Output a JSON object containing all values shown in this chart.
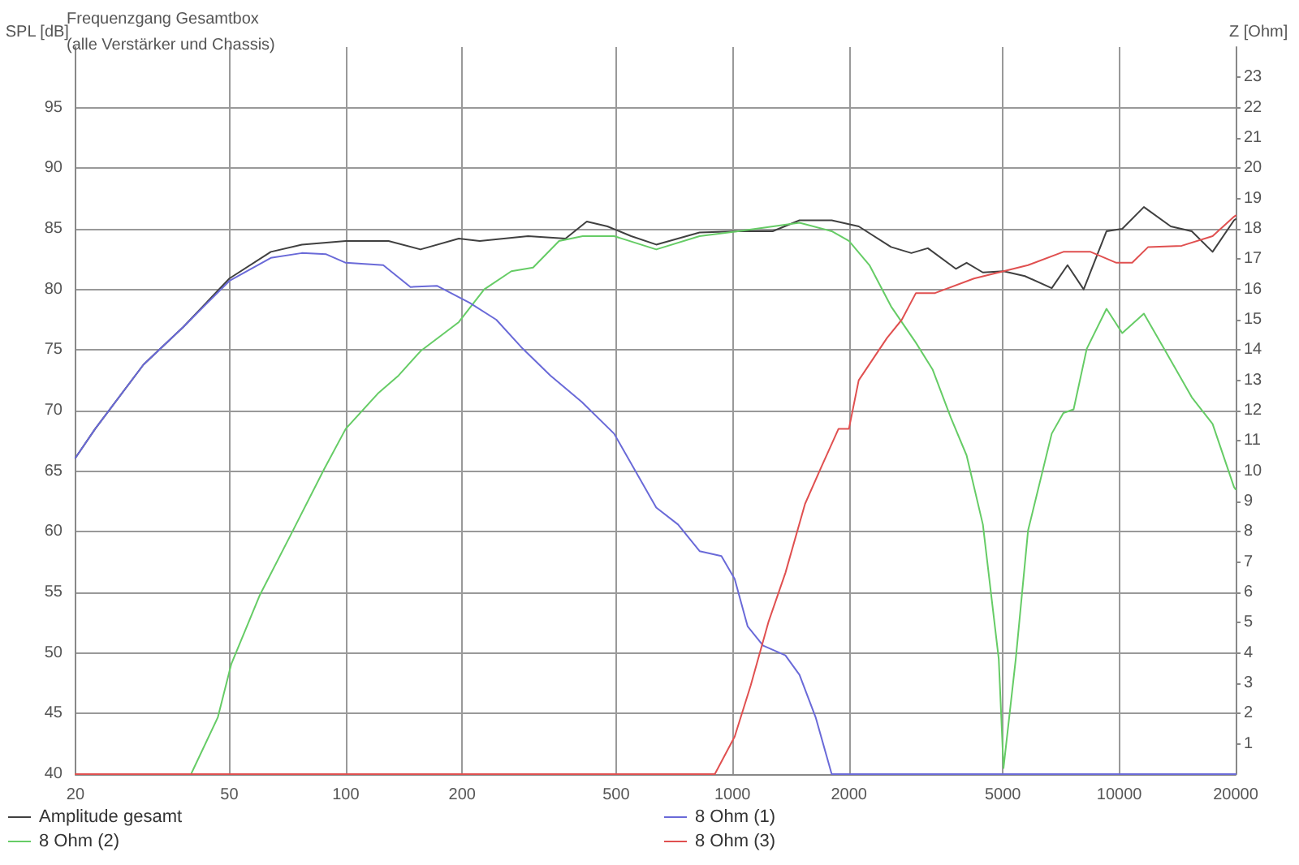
{
  "chart_data": {
    "type": "line",
    "title": "Frequenzgang Gesamtbox",
    "subtitle": "(alle Verstärker und Chassis)",
    "ylabel": "SPL [dB]",
    "y2label": "Z [Ohm]",
    "log": "x",
    "xlim": [
      20,
      20000
    ],
    "xticks": [
      20,
      50,
      100,
      200,
      500,
      1000,
      2000,
      5000,
      10000,
      20000
    ],
    "ylim": [
      40,
      100
    ],
    "yticks": [
      40,
      45,
      50,
      55,
      60,
      65,
      70,
      75,
      80,
      85,
      90,
      95
    ],
    "y2lim": [
      0,
      24
    ],
    "y2ticks": [
      1,
      2,
      3,
      4,
      5,
      6,
      7,
      8,
      9,
      10,
      11,
      12,
      13,
      14,
      15,
      16,
      17,
      18,
      19,
      20,
      21,
      22,
      23
    ],
    "grid": true,
    "legend": "bottom",
    "marker": "none",
    "line_style": "solid",
    "series": [
      {
        "name": "Amplitude gesamt",
        "color": "#404040",
        "x": [
          20,
          22.5,
          30,
          38,
          50,
          64,
          77,
          100,
          129,
          156,
          196,
          222,
          296,
          370,
          420,
          475,
          547,
          635,
          822,
          1033,
          1270,
          1490,
          1805,
          2120,
          2570,
          2900,
          3200,
          3780,
          4030,
          4440,
          5020,
          5700,
          6690,
          7350,
          8090,
          9270,
          10180,
          11580,
          13590,
          15400,
          17430,
          19800,
          20000
        ],
        "values": [
          66.1,
          68.5,
          73.8,
          76.9,
          80.9,
          83.1,
          83.7,
          84,
          84,
          83.3,
          84.2,
          84,
          84.4,
          84.2,
          85.6,
          85.2,
          84.4,
          83.7,
          84.7,
          84.8,
          84.8,
          85.7,
          85.7,
          85.2,
          83.5,
          83,
          83.4,
          81.7,
          82.2,
          81.4,
          81.5,
          81.1,
          80.1,
          82,
          80,
          84.8,
          85,
          86.8,
          85.2,
          84.8,
          83.1,
          85.7,
          85.8
        ]
      },
      {
        "name": "8 Ohm (2)",
        "color": "#66cc66",
        "x": [
          20,
          39.8,
          46.7,
          50.6,
          60,
          73,
          88,
          100,
          121,
          137,
          156,
          196,
          228,
          268,
          305,
          356,
          410,
          494,
          635,
          822,
          1033,
          1490,
          1805,
          2000,
          2260,
          2570,
          2980,
          3290,
          3670,
          4030,
          4440,
          4880,
          5020,
          5400,
          5810,
          6690,
          7170,
          7620,
          8240,
          9270,
          10180,
          11580,
          13060,
          15400,
          17430,
          19800,
          20000
        ],
        "values": [
          40,
          40,
          44.7,
          49.1,
          54.8,
          60.1,
          65.2,
          68.5,
          71.4,
          72.9,
          74.9,
          77.3,
          80,
          81.5,
          81.8,
          84,
          84.4,
          84.4,
          83.3,
          84.4,
          84.8,
          85.5,
          84.8,
          84,
          82,
          78.6,
          75.6,
          73.4,
          69.4,
          66.3,
          60.6,
          49.5,
          40.5,
          49.5,
          60.1,
          68.1,
          69.8,
          70.1,
          75.1,
          78.4,
          76.4,
          78,
          75.1,
          71.1,
          68.9,
          63.7,
          63.5
        ]
      },
      {
        "name": "8 Ohm (1)",
        "color": "#6a6ad8",
        "x": [
          20,
          22.5,
          30,
          38,
          50,
          64,
          77,
          89,
          100,
          125,
          147,
          172,
          209,
          245,
          287,
          338,
          408,
          494,
          635,
          723,
          822,
          936,
          1013,
          1094,
          1200,
          1370,
          1490,
          1640,
          1805,
          20000
        ],
        "values": [
          66.1,
          68.5,
          73.8,
          76.9,
          80.7,
          82.6,
          83,
          82.9,
          82.2,
          82,
          80.2,
          80.3,
          78.9,
          77.5,
          75.1,
          72.9,
          70.7,
          68.1,
          62,
          60.6,
          58.4,
          58,
          56.1,
          52.2,
          50.6,
          49.8,
          48.2,
          44.7,
          40,
          40
        ]
      },
      {
        "name": "8 Ohm (3)",
        "color": "#e05050",
        "x": [
          20,
          900,
          1013,
          1114,
          1240,
          1370,
          1540,
          1700,
          1880,
          2000,
          2120,
          2510,
          2740,
          2980,
          3340,
          4210,
          5020,
          5810,
          7170,
          8430,
          9830,
          10800,
          11880,
          14500,
          17430,
          19800,
          20000
        ],
        "values": [
          40,
          40,
          43.1,
          47.3,
          52.6,
          56.6,
          62.3,
          65.4,
          68.5,
          68.5,
          72.5,
          76,
          77.5,
          79.7,
          79.7,
          80.9,
          81.5,
          82,
          83.1,
          83.1,
          82.2,
          82.2,
          83.5,
          83.6,
          84.4,
          86,
          86.1
        ]
      }
    ]
  }
}
